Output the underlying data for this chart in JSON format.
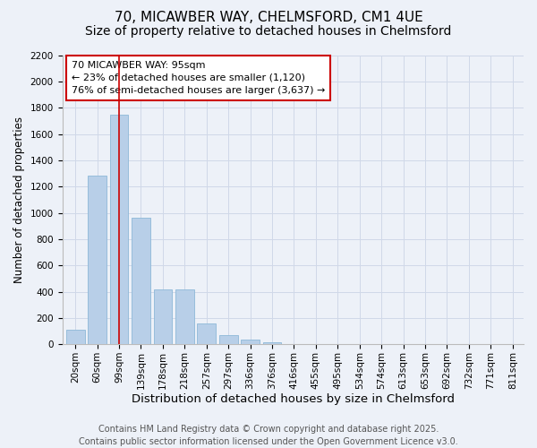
{
  "title1": "70, MICAWBER WAY, CHELMSFORD, CM1 4UE",
  "title2": "Size of property relative to detached houses in Chelmsford",
  "xlabel": "Distribution of detached houses by size in Chelmsford",
  "ylabel": "Number of detached properties",
  "categories": [
    "20sqm",
    "60sqm",
    "99sqm",
    "139sqm",
    "178sqm",
    "218sqm",
    "257sqm",
    "297sqm",
    "336sqm",
    "376sqm",
    "416sqm",
    "455sqm",
    "495sqm",
    "534sqm",
    "574sqm",
    "613sqm",
    "653sqm",
    "692sqm",
    "732sqm",
    "771sqm",
    "811sqm"
  ],
  "values": [
    110,
    1280,
    1750,
    960,
    420,
    420,
    155,
    70,
    35,
    15,
    0,
    0,
    0,
    0,
    0,
    0,
    0,
    0,
    0,
    0,
    0
  ],
  "bar_color": "#b8cfe8",
  "bar_edge_color": "#8db8d8",
  "vline_x": 2.0,
  "vline_color": "#cc0000",
  "annotation_box_text": "70 MICAWBER WAY: 95sqm\n← 23% of detached houses are smaller (1,120)\n76% of semi-detached houses are larger (3,637) →",
  "annotation_box_color": "#cc0000",
  "annotation_box_fill": "#ffffff",
  "ylim": [
    0,
    2200
  ],
  "yticks": [
    0,
    200,
    400,
    600,
    800,
    1000,
    1200,
    1400,
    1600,
    1800,
    2000,
    2200
  ],
  "grid_color": "#d0d8e8",
  "background_color": "#edf1f8",
  "footer_line1": "Contains HM Land Registry data © Crown copyright and database right 2025.",
  "footer_line2": "Contains public sector information licensed under the Open Government Licence v3.0.",
  "title1_fontsize": 11,
  "title2_fontsize": 10,
  "xlabel_fontsize": 9.5,
  "ylabel_fontsize": 8.5,
  "tick_fontsize": 7.5,
  "annotation_fontsize": 8,
  "footer_fontsize": 7
}
